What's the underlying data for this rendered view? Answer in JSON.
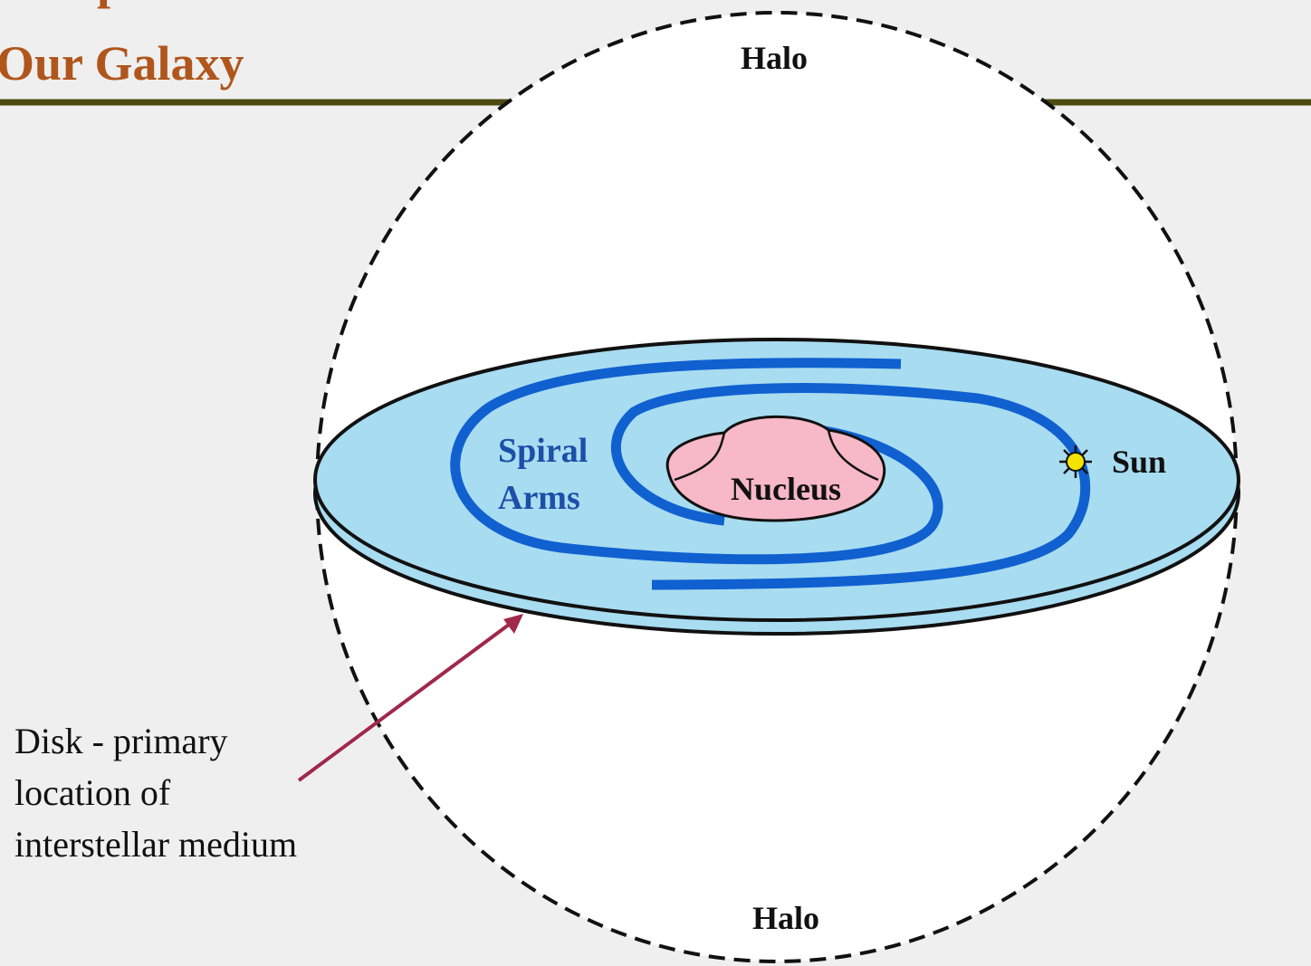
{
  "header": {
    "title_lines": [
      "Components of",
      "Our Galaxy"
    ]
  },
  "labels": {
    "halo_top": "Halo",
    "halo_bottom": "Halo",
    "spiral_arms": [
      "Spiral",
      "Arms"
    ],
    "nucleus": "Nucleus",
    "sun": "Sun",
    "disk": [
      "Disk - primary",
      "location of",
      "interstellar medium"
    ]
  }
}
